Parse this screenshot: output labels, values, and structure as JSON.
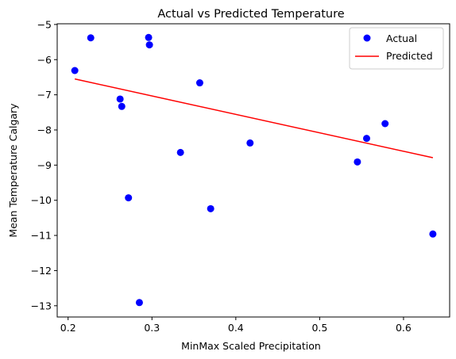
{
  "chart_data": {
    "type": "scatter",
    "title": "Actual vs Predicted Temperature",
    "xlabel": "MinMax Scaled Precipitation",
    "ylabel": "Mean Temperature Calgary",
    "xlim": [
      0.187,
      0.655
    ],
    "ylim": [
      -13.32,
      -4.98
    ],
    "x_ticks": [
      0.2,
      0.3,
      0.4,
      0.5,
      0.6
    ],
    "x_tick_labels": [
      "0.2",
      "0.3",
      "0.4",
      "0.5",
      "0.6"
    ],
    "y_ticks": [
      -13,
      -12,
      -11,
      -10,
      -9,
      -8,
      -7,
      -6,
      -5
    ],
    "y_tick_labels": [
      "−13",
      "−12",
      "−11",
      "−10",
      "−9",
      "−8",
      "−7",
      "−6",
      "−5"
    ],
    "grid": false,
    "legend_position": "top-right",
    "series": [
      {
        "name": "Actual",
        "kind": "scatter",
        "color": "#0000ff",
        "points": [
          {
            "x": 0.208,
            "y": -6.31
          },
          {
            "x": 0.227,
            "y": -5.38
          },
          {
            "x": 0.262,
            "y": -7.12
          },
          {
            "x": 0.264,
            "y": -7.33
          },
          {
            "x": 0.272,
            "y": -9.93
          },
          {
            "x": 0.285,
            "y": -12.91
          },
          {
            "x": 0.296,
            "y": -5.37
          },
          {
            "x": 0.297,
            "y": -5.58
          },
          {
            "x": 0.334,
            "y": -8.64
          },
          {
            "x": 0.357,
            "y": -6.66
          },
          {
            "x": 0.37,
            "y": -10.24
          },
          {
            "x": 0.417,
            "y": -8.37
          },
          {
            "x": 0.545,
            "y": -8.91
          },
          {
            "x": 0.556,
            "y": -8.24
          },
          {
            "x": 0.578,
            "y": -7.82
          },
          {
            "x": 0.635,
            "y": -10.96
          }
        ]
      },
      {
        "name": "Predicted",
        "kind": "line",
        "color": "#ff0000",
        "points": [
          {
            "x": 0.208,
            "y": -6.55
          },
          {
            "x": 0.635,
            "y": -8.79
          }
        ]
      }
    ]
  }
}
